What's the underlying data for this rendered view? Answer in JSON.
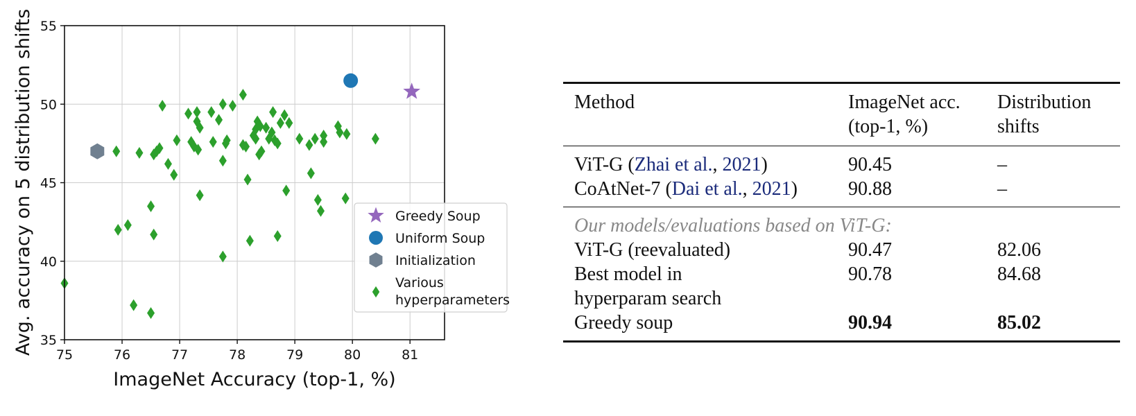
{
  "chart_data": {
    "type": "scatter",
    "xlabel": "ImageNet Accuracy (top-1, %)",
    "ylabel": "Avg. accuracy on 5 distribution shifts",
    "xlim": [
      75,
      81.6
    ],
    "ylim": [
      35,
      55
    ],
    "xticks": [
      75,
      76,
      77,
      78,
      79,
      80,
      81
    ],
    "yticks": [
      35,
      40,
      45,
      50,
      55
    ],
    "grid": true,
    "legend_position": "lower-right",
    "series": [
      {
        "name": "Greedy Soup",
        "marker": "star",
        "color": "#9467bd",
        "points": [
          [
            81.03,
            50.8
          ]
        ]
      },
      {
        "name": "Uniform Soup",
        "marker": "circle",
        "color": "#1f77b4",
        "points": [
          [
            79.97,
            51.5
          ]
        ]
      },
      {
        "name": "Initialization",
        "marker": "hexagon",
        "color": "#708090",
        "points": [
          [
            75.57,
            47.0
          ]
        ]
      },
      {
        "name": "Various hyperparameters",
        "marker": "diamond",
        "color": "#2ca02c",
        "points": [
          [
            75.0,
            38.6
          ],
          [
            75.9,
            47.0
          ],
          [
            75.93,
            42.0
          ],
          [
            76.1,
            42.3
          ],
          [
            76.2,
            37.2
          ],
          [
            76.3,
            46.9
          ],
          [
            76.5,
            43.5
          ],
          [
            76.5,
            36.7
          ],
          [
            76.55,
            41.7
          ],
          [
            76.55,
            46.8
          ],
          [
            76.6,
            47.0
          ],
          [
            76.65,
            47.2
          ],
          [
            76.7,
            49.9
          ],
          [
            76.8,
            46.2
          ],
          [
            76.9,
            45.5
          ],
          [
            76.95,
            47.7
          ],
          [
            77.15,
            49.4
          ],
          [
            77.2,
            47.6
          ],
          [
            77.25,
            47.3
          ],
          [
            77.3,
            49.5
          ],
          [
            77.3,
            48.9
          ],
          [
            77.32,
            47.1
          ],
          [
            77.35,
            48.5
          ],
          [
            77.35,
            44.2
          ],
          [
            77.55,
            49.5
          ],
          [
            77.58,
            47.6
          ],
          [
            77.68,
            49.0
          ],
          [
            77.75,
            46.4
          ],
          [
            77.75,
            50.0
          ],
          [
            77.75,
            40.3
          ],
          [
            77.8,
            47.5
          ],
          [
            77.82,
            47.7
          ],
          [
            77.92,
            49.9
          ],
          [
            78.1,
            50.6
          ],
          [
            78.1,
            47.4
          ],
          [
            78.15,
            47.3
          ],
          [
            78.18,
            45.2
          ],
          [
            78.22,
            41.3
          ],
          [
            78.28,
            48.0
          ],
          [
            78.32,
            47.8
          ],
          [
            78.32,
            48.4
          ],
          [
            78.35,
            48.9
          ],
          [
            78.38,
            46.8
          ],
          [
            78.4,
            48.6
          ],
          [
            78.42,
            47.0
          ],
          [
            78.5,
            48.5
          ],
          [
            78.55,
            47.8
          ],
          [
            78.6,
            48.2
          ],
          [
            78.62,
            49.5
          ],
          [
            78.65,
            47.7
          ],
          [
            78.7,
            47.5
          ],
          [
            78.7,
            41.6
          ],
          [
            78.75,
            48.8
          ],
          [
            78.82,
            49.3
          ],
          [
            78.85,
            44.5
          ],
          [
            78.9,
            48.8
          ],
          [
            79.08,
            47.8
          ],
          [
            79.25,
            47.4
          ],
          [
            79.28,
            45.6
          ],
          [
            79.35,
            47.8
          ],
          [
            79.4,
            43.9
          ],
          [
            79.45,
            43.2
          ],
          [
            79.5,
            47.6
          ],
          [
            79.5,
            48.0
          ],
          [
            79.75,
            48.6
          ],
          [
            79.78,
            48.2
          ],
          [
            79.88,
            44.0
          ],
          [
            79.9,
            48.1
          ],
          [
            80.4,
            47.8
          ]
        ]
      }
    ]
  },
  "table": {
    "headers": {
      "method": "Method",
      "imagenet_l1": "ImageNet acc.",
      "imagenet_l2": "(top-1, %)",
      "dist_l1": "Distribution",
      "dist_l2": "shifts"
    },
    "baselines": [
      {
        "name": "ViT-G",
        "paren_open": " (",
        "cite_author": "Zhai et al.",
        "cite_sep": ", ",
        "cite_year": "2021",
        "paren_close": ")",
        "imagenet": "90.45",
        "shifts": "–"
      },
      {
        "name": "CoAtNet-7",
        "paren_open": " (",
        "cite_author": "Dai et al.",
        "cite_sep": ", ",
        "cite_year": "2021",
        "paren_close": ")",
        "imagenet": "90.88",
        "shifts": "–"
      }
    ],
    "section_header": "Our models/evaluations based on ViT-G:",
    "ours": [
      {
        "name_l1": "ViT-G (reevaluated)",
        "imagenet": "90.47",
        "shifts": "82.06"
      },
      {
        "name_l1": "Best model in",
        "name_l2": "hyperparam search",
        "imagenet": "90.78",
        "shifts": "84.68"
      },
      {
        "name_l1": "Greedy soup",
        "imagenet": "90.94",
        "shifts": "85.02"
      }
    ]
  }
}
